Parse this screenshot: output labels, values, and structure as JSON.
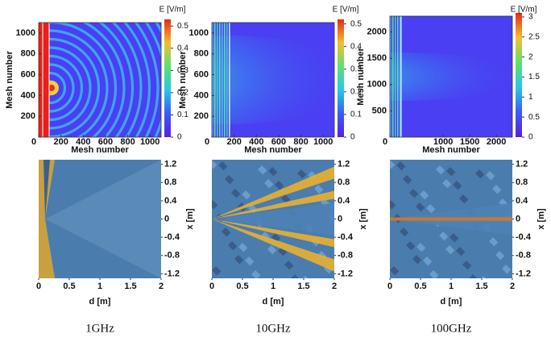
{
  "panels": [
    {
      "colorbar_title": "E [V/m]",
      "x_label": "Mesh number",
      "y_label": "Mesh number",
      "xlim": [
        0,
        1100
      ],
      "ylim": [
        0,
        1100
      ],
      "xticks": [
        0,
        200,
        400,
        600,
        800,
        1000
      ],
      "yticks": [
        200,
        400,
        600,
        800,
        1000
      ],
      "clim": [
        0,
        0.53
      ],
      "cticks": [
        0,
        0.1,
        0.2,
        0.3,
        0.4,
        0.5
      ]
    },
    {
      "colorbar_title": "E [V/m]",
      "x_label": "Mesh number",
      "y_label": "Mesh number",
      "xlim": [
        0,
        1100
      ],
      "ylim": [
        0,
        1100
      ],
      "xticks": [
        0,
        200,
        400,
        600,
        800,
        1000
      ],
      "yticks": [
        200,
        400,
        600,
        800,
        1000
      ],
      "clim": [
        0,
        0.52
      ],
      "cticks": [
        0,
        0.1,
        0.2,
        0.3,
        0.4,
        0.5
      ]
    },
    {
      "colorbar_title": "E [V/m]",
      "x_label": "Mesh number",
      "y_label": "Mesh number",
      "xlim": [
        0,
        2300
      ],
      "ylim": [
        0,
        2300
      ],
      "xticks": [
        0,
        1000,
        1500,
        2000
      ],
      "yticks": [
        500,
        1000,
        1500,
        2000
      ],
      "clim": [
        0,
        3.1
      ],
      "cticks": [
        0,
        0.5,
        1,
        1.5,
        2,
        2.5,
        3
      ]
    }
  ],
  "bottom": [
    {
      "x_label": "d [m]",
      "y_label": "x [m]",
      "xlim": [
        0,
        2
      ],
      "ylim": [
        -1.3,
        1.3
      ],
      "xticks": [
        0,
        0.5,
        1,
        1.5,
        2
      ],
      "yticks": [
        1.2,
        0.8,
        0.4,
        0,
        -0.4,
        -0.8,
        -1.2
      ]
    },
    {
      "x_label": "d [m]",
      "y_label": "x [m]",
      "xlim": [
        0,
        2
      ],
      "ylim": [
        -1.3,
        1.3
      ],
      "xticks": [
        0,
        0.5,
        1,
        1.5,
        2
      ],
      "yticks": [
        1.2,
        0.8,
        0.4,
        0,
        -0.4,
        -0.8,
        -1.2
      ]
    },
    {
      "x_label": "d [m]",
      "y_label": "x [m]",
      "xlim": [
        0,
        2
      ],
      "ylim": [
        -1.3,
        1.3
      ],
      "xticks": [
        0,
        0.5,
        1,
        1.5,
        2
      ],
      "yticks": [
        1.2,
        0.8,
        0.4,
        0,
        -0.4,
        -0.8,
        -1.2
      ]
    }
  ],
  "captions": [
    "1GHz",
    "10GHz",
    "100GHz"
  ]
}
